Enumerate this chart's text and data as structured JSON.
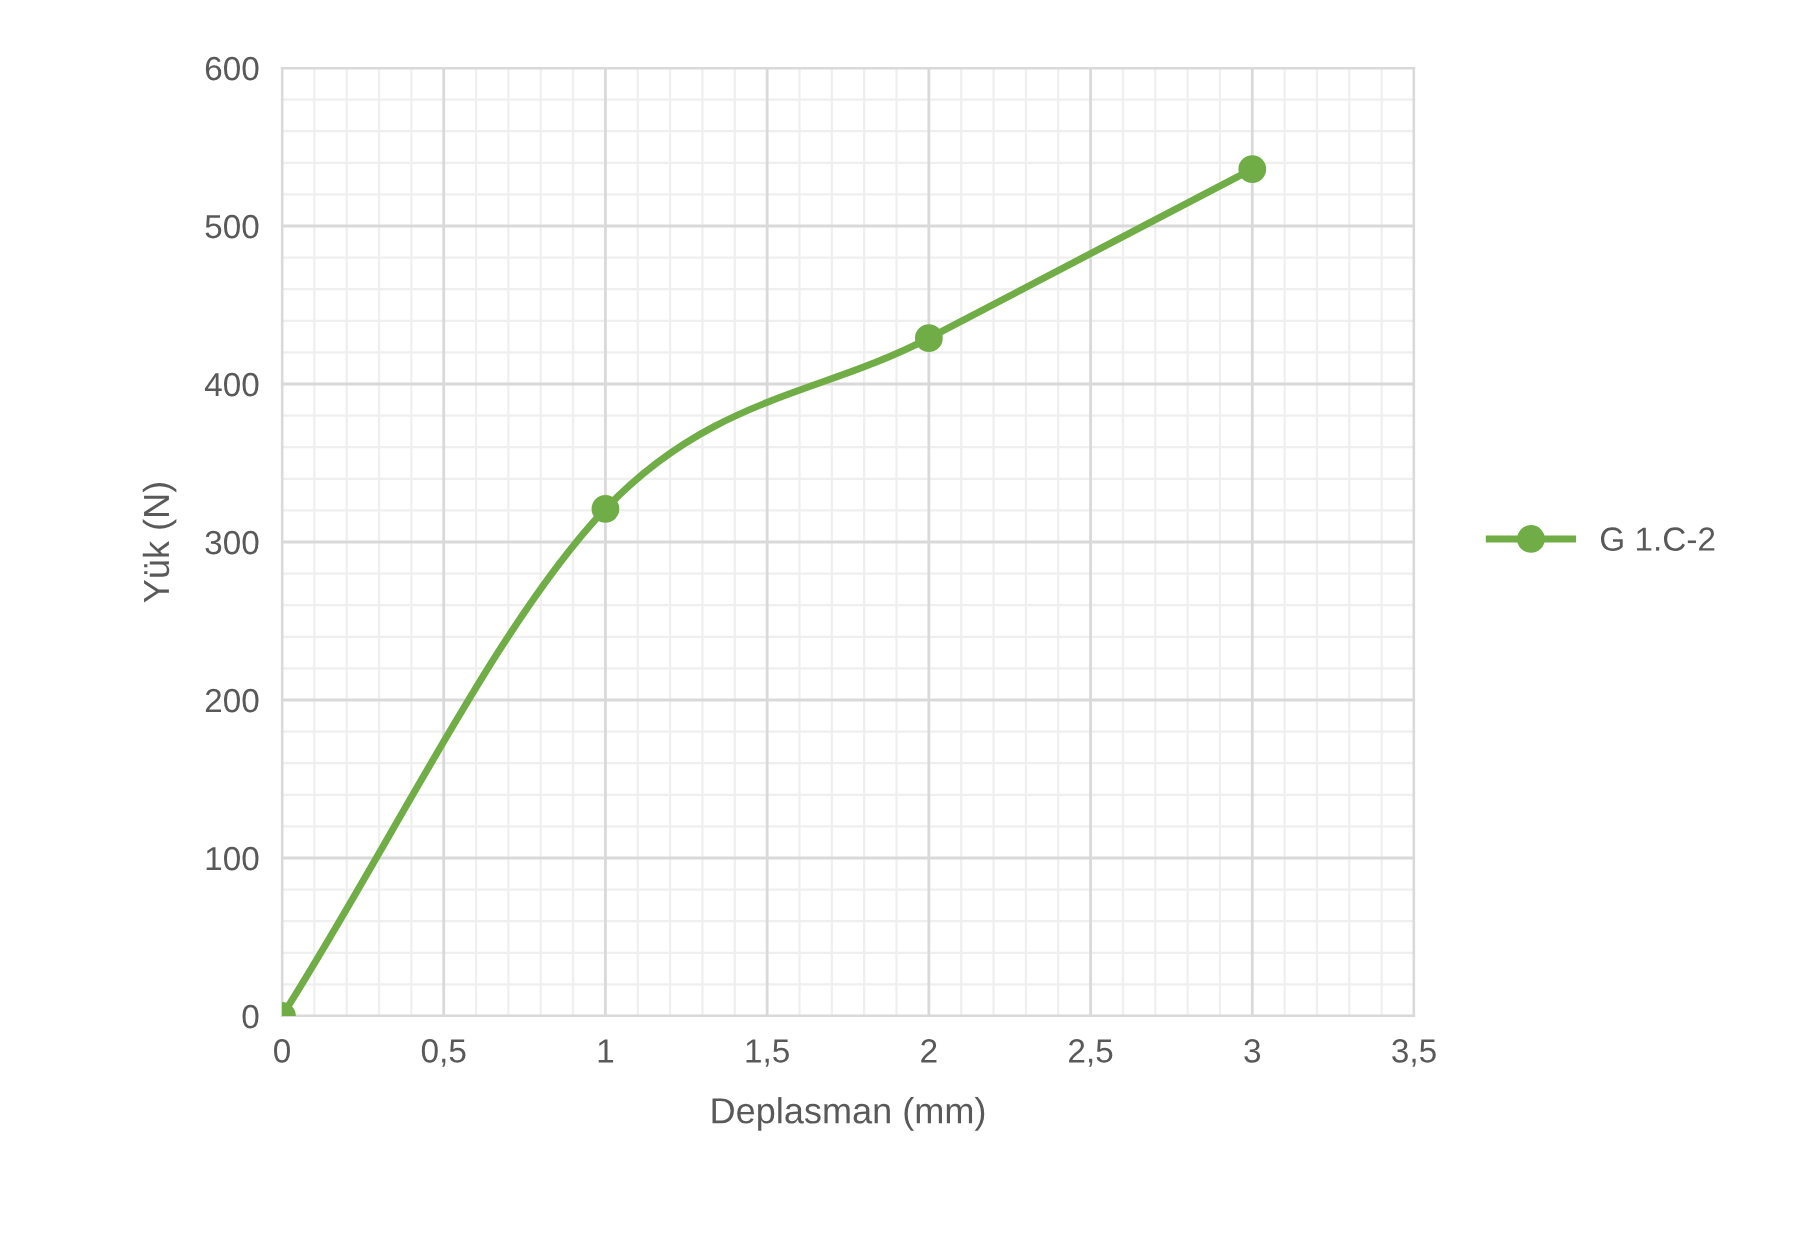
{
  "chart_data": {
    "type": "line",
    "xlabel": "Deplasman (mm)",
    "ylabel": "Yük (N)",
    "x": [
      0,
      1,
      2,
      3
    ],
    "series": [
      {
        "name": "G 1.C-2",
        "color": "#70ad47",
        "values": [
          0,
          321,
          429,
          536
        ]
      }
    ],
    "xlim": [
      0,
      3.5
    ],
    "xticks": [
      {
        "value": 0,
        "label": "0"
      },
      {
        "value": 0.5,
        "label": "0,5"
      },
      {
        "value": 1,
        "label": "1"
      },
      {
        "value": 1.5,
        "label": "1,5"
      },
      {
        "value": 2,
        "label": "2"
      },
      {
        "value": 2.5,
        "label": "2,5"
      },
      {
        "value": 3,
        "label": "3"
      },
      {
        "value": 3.5,
        "label": "3,5"
      }
    ],
    "ylim": [
      0,
      600
    ],
    "yticks": [
      0,
      100,
      200,
      300,
      400,
      500,
      600
    ],
    "grid": true,
    "legend": "right",
    "marker": "circle",
    "line_style": "solid"
  }
}
